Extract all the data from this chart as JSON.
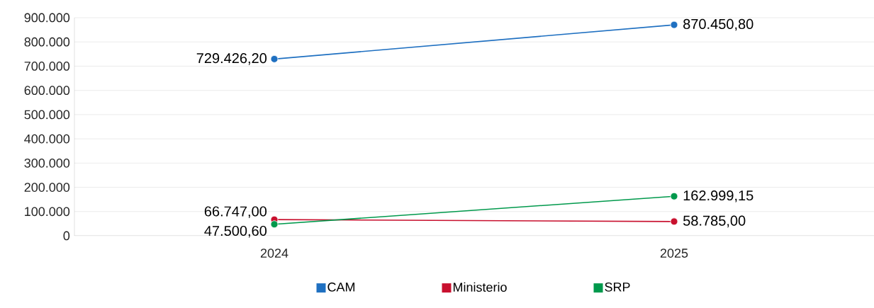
{
  "chart_data": {
    "type": "line",
    "categories": [
      "2024",
      "2025"
    ],
    "series": [
      {
        "name": "CAM",
        "color": "#1f70c1",
        "values": [
          729426.2,
          870450.8
        ],
        "value_labels": [
          "729.426,20",
          "870.450,80"
        ]
      },
      {
        "name": "Ministerio",
        "color": "#c8102e",
        "values": [
          66747.0,
          58785.0
        ],
        "value_labels": [
          "66.747,00",
          "58.785,00"
        ]
      },
      {
        "name": "SRP",
        "color": "#00994c",
        "values": [
          47500.6,
          162999.15
        ],
        "value_labels": [
          "47.500,60",
          "162.999,15"
        ]
      }
    ],
    "ylim": [
      0,
      900000
    ],
    "yticks": [
      0,
      {
        "value": 100000,
        "label": "100.000"
      },
      {
        "value": 200000,
        "label": "200.000"
      },
      {
        "value": 300000,
        "label": "300.000"
      },
      {
        "value": 400000,
        "label": "400.000"
      },
      {
        "value": 500000,
        "label": "500.000"
      },
      {
        "value": 600000,
        "label": "600.000"
      },
      {
        "value": 700000,
        "label": "700.000"
      },
      {
        "value": 800000,
        "label": "800.000"
      },
      {
        "value": 900000,
        "label": "900.000"
      }
    ],
    "grid": "y",
    "legend": "bottom",
    "marker": "circle",
    "line_style": "solid"
  }
}
